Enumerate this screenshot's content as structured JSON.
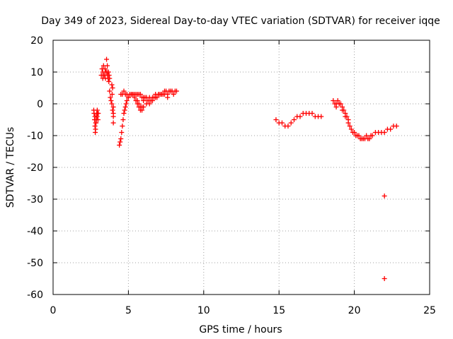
{
  "chart_data": {
    "type": "scatter",
    "title": "Day 349 of 2023, Sidereal Day-to-day VTEC variation (SDTVAR) for receiver iqqe",
    "xlabel": "GPS time / hours",
    "ylabel": "SDTVAR / TECUs",
    "xlim": [
      0,
      25
    ],
    "ylim": [
      -60,
      20
    ],
    "x_ticks": [
      0,
      5,
      10,
      15,
      20,
      25
    ],
    "y_ticks": [
      -60,
      -50,
      -40,
      -30,
      -20,
      -10,
      0,
      10,
      20
    ],
    "x_tick_labels": [
      "0",
      "5",
      "10",
      "15",
      "20",
      "25"
    ],
    "y_tick_labels": [
      "-60",
      "-50",
      "-40",
      "-30",
      "-20",
      "-10",
      "0",
      "10",
      "20"
    ],
    "grid": true,
    "marker": "+",
    "marker_color": "#ff0000",
    "series": [
      {
        "name": "SDTVAR",
        "x": [
          2.7,
          2.72,
          2.75,
          2.78,
          2.8,
          2.82,
          2.85,
          2.88,
          2.9,
          2.92,
          2.95,
          2.98,
          3.0,
          2.78,
          2.83,
          2.87,
          2.93,
          3.2,
          3.25,
          3.3,
          3.35,
          3.4,
          3.45,
          3.5,
          3.55,
          3.6,
          3.62,
          3.65,
          3.68,
          3.7,
          3.72,
          3.75,
          3.3,
          3.38,
          3.48,
          3.58,
          3.75,
          3.8,
          3.85,
          3.9,
          3.95,
          4.0,
          4.0,
          3.95,
          3.92,
          3.9,
          4.0,
          4.0,
          4.4,
          4.45,
          4.5,
          4.55,
          4.6,
          4.65,
          4.7,
          4.75,
          4.8,
          4.85,
          4.9,
          5.0,
          5.1,
          5.2,
          5.3,
          5.4,
          5.5,
          5.6,
          5.7,
          5.8,
          4.5,
          4.6,
          4.7,
          4.8,
          4.9,
          5.0,
          5.1,
          5.2,
          5.3,
          5.4,
          5.5,
          5.6,
          5.7,
          5.8,
          5.9,
          6.0,
          5.9,
          6.0,
          6.1,
          6.2,
          6.3,
          6.4,
          6.5,
          6.6,
          6.7,
          6.8,
          6.9,
          7.0,
          7.1,
          7.2,
          7.3,
          7.4,
          7.5,
          7.6,
          7.7,
          7.8,
          7.9,
          8.0,
          8.1,
          8.2,
          5.6,
          5.7,
          5.8,
          5.9,
          6.0,
          6.2,
          6.4,
          6.6,
          6.8,
          7.0,
          7.2,
          7.4,
          7.6,
          14.8,
          15.0,
          15.2,
          15.4,
          15.6,
          15.8,
          16.0,
          16.2,
          16.4,
          16.6,
          16.8,
          17.0,
          17.2,
          17.4,
          17.6,
          17.8,
          18.6,
          18.7,
          18.8,
          18.9,
          19.0,
          19.1,
          19.2,
          19.3,
          19.4,
          19.5,
          19.6,
          19.7,
          19.8,
          19.9,
          20.0,
          20.1,
          20.2,
          20.3,
          20.4,
          20.5,
          20.6,
          20.7,
          20.8,
          20.9,
          21.0,
          21.1,
          21.2,
          21.4,
          21.6,
          21.8,
          22.0,
          22.2,
          22.4,
          22.6,
          22.8,
          18.8,
          19.0,
          19.2,
          19.4,
          19.6,
          22.0,
          22.0
        ],
        "y": [
          -2,
          -3,
          -5,
          -7,
          -9,
          -8,
          -6,
          -4,
          -3,
          -4,
          -3,
          -5,
          -3,
          -4,
          -6,
          -5,
          -2,
          9,
          11,
          10,
          12,
          9,
          11,
          10,
          14,
          12,
          9,
          8,
          10,
          7,
          9,
          8,
          8,
          9,
          8,
          10,
          4,
          2,
          1,
          0,
          -2,
          -4,
          -6,
          5,
          3,
          6,
          -3,
          -1,
          -13,
          -12,
          -11,
          -9,
          -7,
          -5,
          -3,
          -2,
          -1,
          0,
          1,
          2,
          3,
          3,
          3,
          2,
          1,
          0,
          -1,
          -2,
          3,
          3,
          4,
          3,
          3,
          2,
          3,
          3,
          3,
          3,
          3,
          3,
          3,
          3,
          2,
          2,
          -1,
          1,
          2,
          2,
          1,
          2,
          1,
          2,
          2,
          3,
          2,
          3,
          3,
          3,
          3,
          4,
          4,
          3,
          4,
          4,
          4,
          3,
          4,
          4,
          1,
          0,
          -1,
          -2,
          -1,
          0,
          0,
          1,
          2,
          3,
          3,
          3,
          2,
          -5,
          -6,
          -6,
          -7,
          -7,
          -6,
          -5,
          -4,
          -4,
          -3,
          -3,
          -3,
          -3,
          -4,
          -4,
          -4,
          1,
          0,
          0,
          1,
          0,
          0,
          -1,
          -2,
          -3,
          -4,
          -5,
          -7,
          -8,
          -9,
          -9,
          -10,
          -10,
          -10,
          -11,
          -11,
          -11,
          -11,
          -10,
          -11,
          -11,
          -10,
          -10,
          -9,
          -9,
          -9,
          -9,
          -8,
          -8,
          -7,
          -7,
          -1,
          0,
          -2,
          -4,
          -6,
          -29,
          -55
        ]
      }
    ]
  }
}
